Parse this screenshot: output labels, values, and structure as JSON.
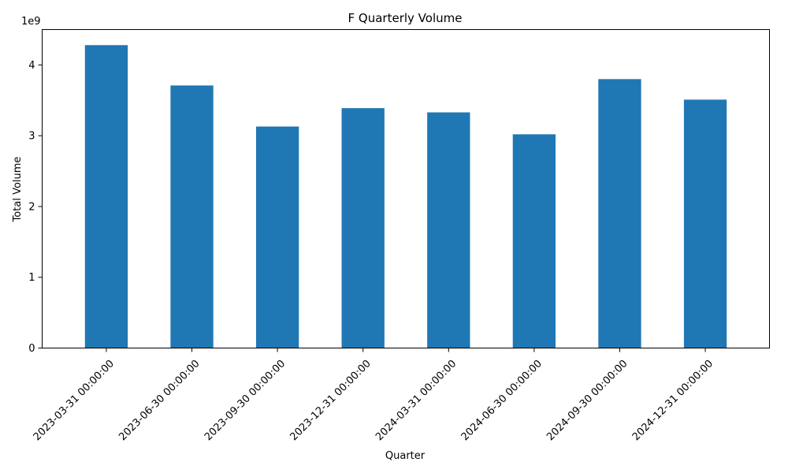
{
  "chart_data": {
    "type": "bar",
    "title": "F Quarterly Volume",
    "xlabel": "Quarter",
    "ylabel": "Total Volume",
    "y_offset_label": "1e9",
    "categories": [
      "2023-03-31 00:00:00",
      "2023-06-30 00:00:00",
      "2023-09-30 00:00:00",
      "2023-12-31 00:00:00",
      "2024-03-31 00:00:00",
      "2024-06-30 00:00:00",
      "2024-09-30 00:00:00",
      "2024-12-31 00:00:00"
    ],
    "values": [
      4.28,
      3.71,
      3.13,
      3.39,
      3.33,
      3.02,
      3.8,
      3.51
    ],
    "ylim": [
      0,
      4.5
    ],
    "yticks": [
      0,
      1,
      2,
      3,
      4
    ],
    "bar_color": "#1f77b4",
    "grid": false,
    "legend": "none"
  }
}
